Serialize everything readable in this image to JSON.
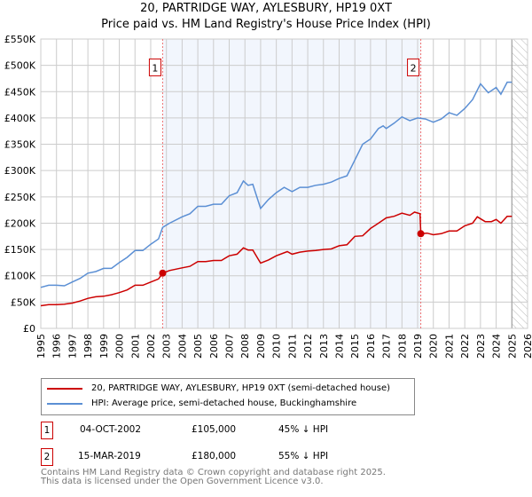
{
  "title_line1": "20, PARTRIDGE WAY, AYLESBURY, HP19 0XT",
  "title_line2": "Price paid vs. HM Land Registry's House Price Index (HPI)",
  "chart_data": {
    "type": "line",
    "title": "Price paid vs. HM Land Registry's House Price Index (HPI)",
    "xlim": [
      1995,
      2026
    ],
    "ylim": [
      0,
      550000
    ],
    "x_ticks": [
      "1995",
      "1996",
      "1997",
      "1998",
      "1999",
      "2000",
      "2001",
      "2002",
      "2003",
      "2004",
      "2005",
      "2006",
      "2007",
      "2008",
      "2009",
      "2010",
      "2011",
      "2012",
      "2013",
      "2014",
      "2015",
      "2016",
      "2017",
      "2018",
      "2019",
      "2020",
      "2021",
      "2022",
      "2023",
      "2024",
      "2025",
      "2026"
    ],
    "y_ticks": [
      {
        "v": 0,
        "label": "£0"
      },
      {
        "v": 50000,
        "label": "£50K"
      },
      {
        "v": 100000,
        "label": "£100K"
      },
      {
        "v": 150000,
        "label": "£150K"
      },
      {
        "v": 200000,
        "label": "£200K"
      },
      {
        "v": 250000,
        "label": "£250K"
      },
      {
        "v": 300000,
        "label": "£300K"
      },
      {
        "v": 350000,
        "label": "£350K"
      },
      {
        "v": 400000,
        "label": "£400K"
      },
      {
        "v": 450000,
        "label": "£450K"
      },
      {
        "v": 500000,
        "label": "£500K"
      },
      {
        "v": 550000,
        "label": "£550K"
      }
    ],
    "grid": true,
    "shaded_range": [
      2002.76,
      2019.2
    ],
    "forecast_hatch_from": 2025.0,
    "series": [
      {
        "name": "20, PARTRIDGE WAY, AYLESBURY, HP19 0XT (semi-detached house)",
        "color": "#cc0000",
        "x": [
          1995,
          1995.5,
          1996,
          1996.5,
          1997,
          1997.5,
          1998,
          1998.5,
          1999,
          1999.5,
          2000,
          2000.5,
          2001,
          2001.5,
          2002,
          2002.5,
          2002.76,
          2003.2,
          2004,
          2004.5,
          2005,
          2005.5,
          2006,
          2006.5,
          2007,
          2007.5,
          2007.9,
          2008.2,
          2008.5,
          2009,
          2009.5,
          2010,
          2010.7,
          2011,
          2011.5,
          2012,
          2012.5,
          2013,
          2013.5,
          2014,
          2014.5,
          2015,
          2015.5,
          2016,
          2016.5,
          2017,
          2017.5,
          2018,
          2018.5,
          2018.8,
          2019.15,
          2019.2,
          2019.6,
          2020,
          2020.5,
          2021,
          2021.5,
          2022,
          2022.5,
          2022.8,
          2023.3,
          2023.7,
          2024,
          2024.3,
          2024.7,
          2025
        ],
        "y": [
          43000,
          45000,
          45000,
          46000,
          48000,
          52000,
          57000,
          60000,
          61000,
          64000,
          68000,
          73000,
          82000,
          82000,
          88000,
          94000,
          105000,
          110000,
          115000,
          118000,
          127000,
          127000,
          129000,
          129000,
          138000,
          141000,
          153000,
          149000,
          149000,
          124000,
          130000,
          138000,
          146000,
          141000,
          145000,
          147000,
          148000,
          150000,
          151000,
          157000,
          159000,
          175000,
          176000,
          190000,
          200000,
          210000,
          213000,
          219000,
          215000,
          221000,
          218000,
          180000,
          181000,
          178000,
          180000,
          185000,
          185000,
          195000,
          200000,
          212000,
          203000,
          203000,
          207000,
          200000,
          213000,
          213000
        ]
      },
      {
        "name": "HPI: Average price, semi-detached house, Buckinghamshire",
        "color": "#5b8fd4",
        "x": [
          1995,
          1995.5,
          1996,
          1996.5,
          1997,
          1997.5,
          1998,
          1998.5,
          1999,
          1999.5,
          2000,
          2000.5,
          2001,
          2001.5,
          2002,
          2002.5,
          2002.76,
          2003.2,
          2004,
          2004.5,
          2005,
          2005.5,
          2006,
          2006.5,
          2007,
          2007.5,
          2007.9,
          2008.2,
          2008.5,
          2009,
          2009.5,
          2010,
          2010.5,
          2011,
          2011.5,
          2012,
          2012.5,
          2013,
          2013.5,
          2014,
          2014.5,
          2015,
          2015.5,
          2016,
          2016.5,
          2016.8,
          2017,
          2017.5,
          2018,
          2018.5,
          2019,
          2019.5,
          2020,
          2020.5,
          2021,
          2021.5,
          2022,
          2022.5,
          2023,
          2023.5,
          2024,
          2024.3,
          2024.7,
          2025
        ],
        "y": [
          78000,
          82000,
          82000,
          81000,
          88000,
          95000,
          105000,
          108000,
          114000,
          114000,
          125000,
          135000,
          148000,
          148000,
          160000,
          170000,
          192000,
          200000,
          212000,
          218000,
          232000,
          232000,
          236000,
          236000,
          252000,
          258000,
          280000,
          272000,
          274000,
          228000,
          245000,
          258000,
          268000,
          260000,
          268000,
          268000,
          272000,
          274000,
          278000,
          285000,
          290000,
          320000,
          350000,
          360000,
          380000,
          385000,
          380000,
          390000,
          402000,
          395000,
          400000,
          398000,
          392000,
          398000,
          410000,
          405000,
          418000,
          435000,
          465000,
          448000,
          458000,
          445000,
          468000,
          468000
        ]
      }
    ],
    "annotations": [
      {
        "label": "1",
        "x": 2002.76,
        "y": 105000
      },
      {
        "label": "2",
        "x": 2019.2,
        "y": 180000
      }
    ]
  },
  "legend": [
    {
      "label": "20, PARTRIDGE WAY, AYLESBURY, HP19 0XT (semi-detached house)",
      "color": "#cc0000"
    },
    {
      "label": "HPI: Average price, semi-detached house, Buckinghamshire",
      "color": "#5b8fd4"
    }
  ],
  "transactions": [
    {
      "num": "1",
      "date": "04-OCT-2002",
      "price": "£105,000",
      "hpi": "45% ↓ HPI"
    },
    {
      "num": "2",
      "date": "15-MAR-2019",
      "price": "£180,000",
      "hpi": "55% ↓ HPI"
    }
  ],
  "footer_line1": "Contains HM Land Registry data © Crown copyright and database right 2025.",
  "footer_line2": "This data is licensed under the Open Government Licence v3.0."
}
